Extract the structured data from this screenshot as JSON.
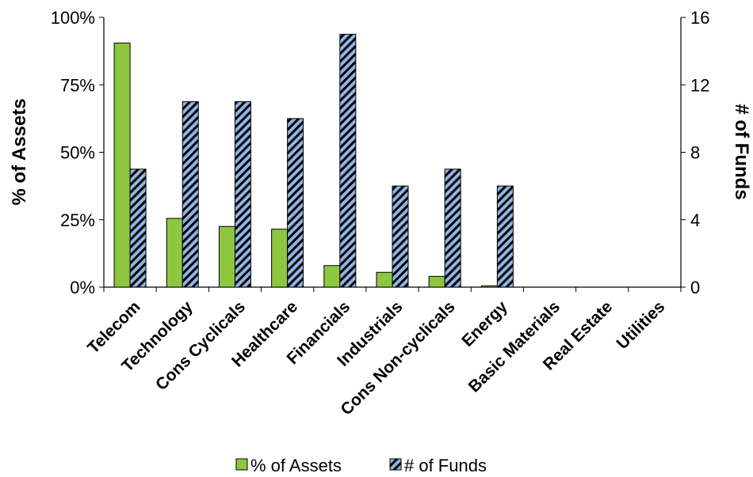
{
  "chart_data": {
    "type": "bar",
    "categories": [
      "Telecom",
      "Technology",
      "Cons Cyclicals",
      "Healthcare",
      "Financials",
      "Industrials",
      "Cons Non-cyclicals",
      "Energy",
      "Basic Materials",
      "Real Estate",
      "Utilities"
    ],
    "series": [
      {
        "name": "% of Assets",
        "axis": "left",
        "color": "#8dc63f",
        "values": [
          90.5,
          25.5,
          22.5,
          21.5,
          8.0,
          5.5,
          4.0,
          0.5,
          0,
          0,
          0
        ]
      },
      {
        "name": "# of Funds",
        "axis": "right",
        "color": "#8fb4e3",
        "pattern": "black diagonal hatch",
        "values": [
          7,
          11,
          11,
          10,
          15,
          6,
          7,
          6,
          0,
          0,
          0
        ]
      }
    ],
    "y_left": {
      "label": "% of Assets",
      "range": [
        0,
        100
      ],
      "ticks": [
        "0%",
        "25%",
        "50%",
        "75%",
        "100%"
      ],
      "tick_values": [
        0,
        25,
        50,
        75,
        100
      ]
    },
    "y_right": {
      "label": "# of Funds",
      "range": [
        0,
        16
      ],
      "ticks": [
        "0",
        "4",
        "8",
        "12",
        "16"
      ],
      "tick_values": [
        0,
        4,
        8,
        12,
        16
      ]
    },
    "grid": false,
    "legend": {
      "position": "bottom",
      "items": [
        "% of Assets",
        "# of Funds"
      ]
    }
  }
}
